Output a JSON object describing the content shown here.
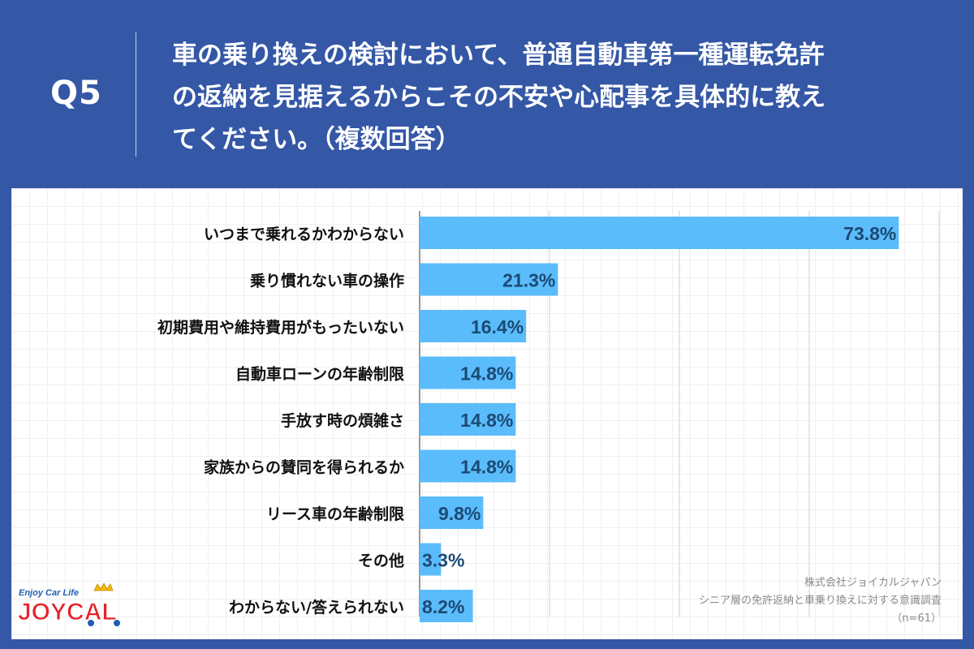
{
  "header": {
    "question_no": "Q5",
    "question_lines": [
      "車の乗り換えの検討において、普通自動車第一種運転免許",
      "の返納を見据えるからこその不安や心配事を具体的に教え",
      "てください。（複数回答）"
    ]
  },
  "chart_data": {
    "type": "bar",
    "orientation": "horizontal",
    "categories": [
      "いつまで乗れるかわからない",
      "乗り慣れない車の操作",
      "初期費用や維持費用がもったいない",
      "自動車ローンの年齢制限",
      "手放す時の煩雑さ",
      "家族からの賛同を得られるか",
      "リース車の年齢制限",
      "その他",
      "わからない/答えられない"
    ],
    "values": [
      73.8,
      21.3,
      16.4,
      14.8,
      14.8,
      14.8,
      9.8,
      3.3,
      8.2
    ],
    "value_labels": [
      "73.8%",
      "21.3%",
      "16.4%",
      "14.8%",
      "14.8%",
      "14.8%",
      "9.8%",
      "3.3%",
      "8.2%"
    ],
    "xlim": [
      0,
      80
    ],
    "grid": true,
    "colors": {
      "bar": "#5bbcfb",
      "label": "#1b4a73"
    }
  },
  "source": {
    "lines": [
      "株式会社ジョイカルジャパン",
      "シニア層の免許返納と車乗り換えに対する意識調査",
      "（n=61）"
    ]
  },
  "logo": {
    "tagline": "Enjoy Car Life",
    "name": "JOYCAL",
    "colors": {
      "tagline": "#1e5fb0",
      "name": "#e6212a",
      "crown": "#f2b705"
    }
  }
}
